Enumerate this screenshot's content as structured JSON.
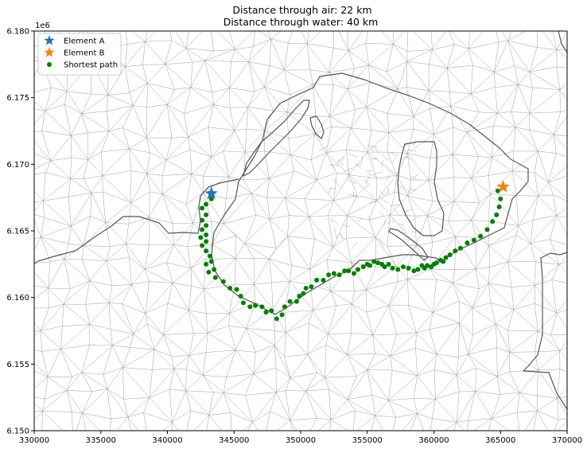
{
  "chart_data": {
    "type": "scatter",
    "title": [
      "Distance through air: 22 km",
      "Distance through water: 40 km"
    ],
    "xlabel": "",
    "ylabel": "",
    "y_offset_label": "1e6",
    "xlim": [
      330000,
      370000
    ],
    "ylim": [
      6150000,
      6180000
    ],
    "xticks": [
      330000,
      335000,
      340000,
      345000,
      350000,
      355000,
      360000,
      365000,
      370000
    ],
    "xtick_labels": [
      "330000",
      "335000",
      "340000",
      "345000",
      "350000",
      "355000",
      "360000",
      "365000",
      "370000"
    ],
    "yticks": [
      6150000,
      6155000,
      6160000,
      6165000,
      6170000,
      6175000,
      6180000
    ],
    "ytick_labels": [
      "6.150",
      "6.155",
      "6.160",
      "6.165",
      "6.170",
      "6.175",
      "6.180"
    ],
    "grid": false,
    "legend_position": "top-left",
    "colors": {
      "element_a": "#1f77b4",
      "element_b": "#ff7f0e",
      "path": "#008000",
      "mesh": "#a0a0a0",
      "coastline": "#555555"
    },
    "series": [
      {
        "name": "Element A",
        "marker": "star",
        "points": [
          [
            343300,
            6167800
          ]
        ]
      },
      {
        "name": "Element B",
        "marker": "star",
        "points": [
          [
            365200,
            6168300
          ]
        ]
      },
      {
        "name": "Shortest path",
        "marker": "circle",
        "points": [
          [
            343300,
            6167400
          ],
          [
            342900,
            6167000
          ],
          [
            342600,
            6166700
          ],
          [
            342900,
            6166200
          ],
          [
            342600,
            6165800
          ],
          [
            342900,
            6165400
          ],
          [
            342600,
            6165100
          ],
          [
            342900,
            6164700
          ],
          [
            342500,
            6164500
          ],
          [
            342900,
            6164200
          ],
          [
            342600,
            6163900
          ],
          [
            342900,
            6163500
          ],
          [
            343200,
            6163100
          ],
          [
            343300,
            6162700
          ],
          [
            342900,
            6162500
          ],
          [
            343500,
            6162100
          ],
          [
            343100,
            6161900
          ],
          [
            343600,
            6161500
          ],
          [
            344200,
            6161200
          ],
          [
            344700,
            6160700
          ],
          [
            345200,
            6160600
          ],
          [
            345500,
            6160100
          ],
          [
            345700,
            6159600
          ],
          [
            346200,
            6159300
          ],
          [
            346600,
            6159400
          ],
          [
            347100,
            6159300
          ],
          [
            347400,
            6158900
          ],
          [
            347800,
            6159000
          ],
          [
            348200,
            6158400
          ],
          [
            348600,
            6158700
          ],
          [
            348800,
            6159300
          ],
          [
            349200,
            6159700
          ],
          [
            349700,
            6159700
          ],
          [
            349900,
            6160100
          ],
          [
            350200,
            6160300
          ],
          [
            350400,
            6160700
          ],
          [
            350800,
            6160800
          ],
          [
            351200,
            6161300
          ],
          [
            351700,
            6161300
          ],
          [
            352100,
            6161700
          ],
          [
            352500,
            6161800
          ],
          [
            352900,
            6161700
          ],
          [
            353300,
            6162000
          ],
          [
            353600,
            6162000
          ],
          [
            354000,
            6161800
          ],
          [
            354300,
            6162100
          ],
          [
            354700,
            6162300
          ],
          [
            355000,
            6162500
          ],
          [
            355200,
            6162400
          ],
          [
            355500,
            6162700
          ],
          [
            355800,
            6162600
          ],
          [
            356100,
            6162500
          ],
          [
            356300,
            6162300
          ],
          [
            356600,
            6162500
          ],
          [
            356900,
            6162200
          ],
          [
            357300,
            6162100
          ],
          [
            357700,
            6162300
          ],
          [
            358100,
            6162200
          ],
          [
            358500,
            6162000
          ],
          [
            358800,
            6162100
          ],
          [
            359100,
            6162400
          ],
          [
            359300,
            6162200
          ],
          [
            359500,
            6162400
          ],
          [
            359800,
            6162300
          ],
          [
            360000,
            6162500
          ],
          [
            360200,
            6162600
          ],
          [
            360500,
            6162800
          ],
          [
            360700,
            6162700
          ],
          [
            360900,
            6163000
          ],
          [
            361200,
            6163200
          ],
          [
            361600,
            6163500
          ],
          [
            362000,
            6163700
          ],
          [
            362500,
            6164100
          ],
          [
            363000,
            6164300
          ],
          [
            363500,
            6164600
          ],
          [
            364000,
            6165100
          ],
          [
            364400,
            6165700
          ],
          [
            364700,
            6166200
          ],
          [
            364900,
            6166800
          ],
          [
            365000,
            6167400
          ],
          [
            364800,
            6168000
          ]
        ]
      }
    ]
  }
}
